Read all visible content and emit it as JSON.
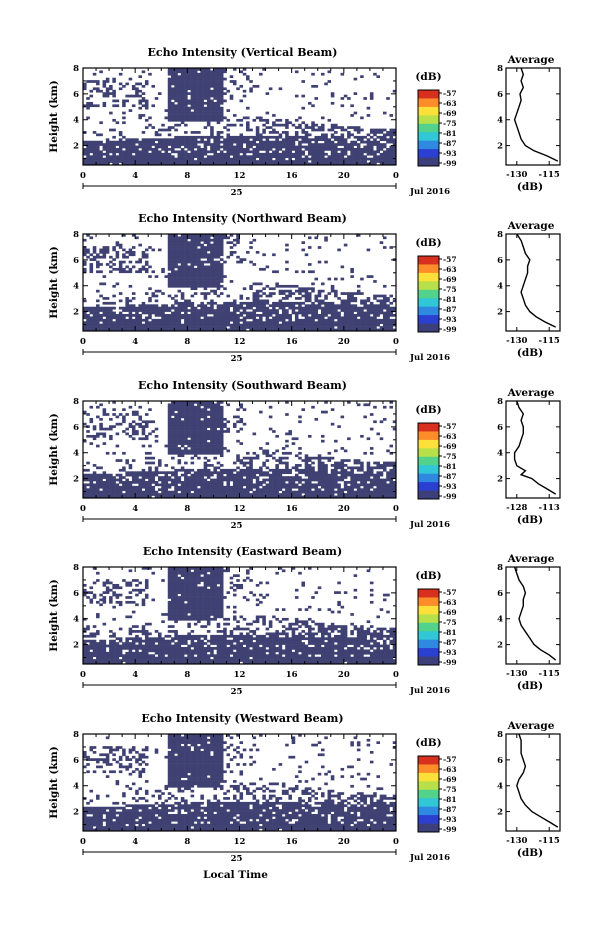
{
  "xlabel": "Local Time",
  "date_label": "Jul 2016",
  "day_label": "25",
  "colorbar_unit": "(dB)",
  "colorbar_ticks": [
    "-57",
    "-63",
    "-69",
    "-75",
    "-81",
    "-87",
    "-93",
    "-99"
  ],
  "colorbar_colors": [
    "#d7301f",
    "#fc8d2a",
    "#fee03a",
    "#b8e04a",
    "#52d28a",
    "#31c7d6",
    "#2f89e0",
    "#2b3fd0",
    "#3c3f7a"
  ],
  "fill_color": "#3f4173",
  "chart_data": [
    {
      "type": "heatmap",
      "title": "Echo Intensity (Vertical Beam)",
      "ylabel": "Height (km)",
      "xlim": [
        0,
        24
      ],
      "ylim": [
        0.5,
        8
      ],
      "xticks": [
        "0",
        "4",
        "8",
        "12",
        "16",
        "20",
        "0"
      ],
      "yticks": [
        "2",
        "4",
        "6",
        "8"
      ],
      "average": {
        "title": "Average",
        "xlabel": "(dB)",
        "xticks": [
          "-130",
          "-115"
        ],
        "xlim": [
          -135,
          -110
        ],
        "yticks": [
          "2",
          "4",
          "6",
          "8"
        ],
        "profile": [
          [
            0.8,
            -111
          ],
          [
            1.2,
            -116
          ],
          [
            1.6,
            -122
          ],
          [
            2.0,
            -126
          ],
          [
            2.5,
            -128
          ],
          [
            3.0,
            -129
          ],
          [
            3.5,
            -130
          ],
          [
            4.0,
            -131
          ],
          [
            4.5,
            -130
          ],
          [
            5.0,
            -129
          ],
          [
            5.5,
            -128
          ],
          [
            6.0,
            -128.5
          ],
          [
            6.5,
            -127
          ],
          [
            7.0,
            -128
          ],
          [
            7.5,
            -127
          ],
          [
            8.0,
            -128
          ]
        ]
      }
    },
    {
      "type": "heatmap",
      "title": "Echo Intensity (Northward Beam)",
      "ylabel": "Height (km)",
      "xlim": [
        0,
        24
      ],
      "ylim": [
        0.5,
        8
      ],
      "xticks": [
        "0",
        "4",
        "8",
        "12",
        "16",
        "20",
        "0"
      ],
      "yticks": [
        "2",
        "4",
        "6",
        "8"
      ],
      "average": {
        "title": "Average",
        "xlabel": "(dB)",
        "xticks": [
          "-130",
          "-115"
        ],
        "xlim": [
          -135,
          -110
        ],
        "yticks": [
          "2",
          "4",
          "6",
          "8"
        ],
        "profile": [
          [
            0.8,
            -112
          ],
          [
            1.2,
            -117
          ],
          [
            1.6,
            -121
          ],
          [
            2.0,
            -124
          ],
          [
            2.5,
            -126
          ],
          [
            3.0,
            -127
          ],
          [
            3.5,
            -128
          ],
          [
            4.0,
            -127
          ],
          [
            4.5,
            -126
          ],
          [
            5.0,
            -125
          ],
          [
            5.5,
            -125
          ],
          [
            6.0,
            -124
          ],
          [
            6.5,
            -126
          ],
          [
            7.0,
            -127
          ],
          [
            7.5,
            -128
          ],
          [
            8.0,
            -130
          ]
        ]
      }
    },
    {
      "type": "heatmap",
      "title": "Echo Intensity (Southward Beam)",
      "ylabel": "Height (km)",
      "xlim": [
        0,
        24
      ],
      "ylim": [
        0.5,
        8
      ],
      "xticks": [
        "0",
        "4",
        "8",
        "12",
        "16",
        "20",
        "0"
      ],
      "yticks": [
        "2",
        "4",
        "6",
        "8"
      ],
      "average": {
        "title": "Average",
        "xlabel": "(dB)",
        "xticks": [
          "-128",
          "-113"
        ],
        "xlim": [
          -133,
          -108
        ],
        "yticks": [
          "2",
          "4",
          "6",
          "8"
        ],
        "profile": [
          [
            0.8,
            -110
          ],
          [
            1.2,
            -114
          ],
          [
            1.6,
            -118
          ],
          [
            2.0,
            -121
          ],
          [
            2.3,
            -126
          ],
          [
            2.6,
            -124
          ],
          [
            3.0,
            -128
          ],
          [
            3.5,
            -129
          ],
          [
            4.0,
            -129
          ],
          [
            4.5,
            -127
          ],
          [
            5.0,
            -126
          ],
          [
            5.5,
            -125
          ],
          [
            6.0,
            -125
          ],
          [
            6.5,
            -126
          ],
          [
            7.0,
            -125
          ],
          [
            7.5,
            -127
          ],
          [
            8.0,
            -128
          ]
        ]
      }
    },
    {
      "type": "heatmap",
      "title": "Echo Intensity (Eastward Beam)",
      "ylabel": "Height (km)",
      "xlim": [
        0,
        24
      ],
      "ylim": [
        0.5,
        8
      ],
      "xticks": [
        "0",
        "4",
        "8",
        "12",
        "16",
        "20",
        "0"
      ],
      "yticks": [
        "2",
        "4",
        "6",
        "8"
      ],
      "average": {
        "title": "Average",
        "xlabel": "(dB)",
        "xticks": [
          "-130",
          "-115"
        ],
        "xlim": [
          -135,
          -110
        ],
        "yticks": [
          "2",
          "4",
          "6",
          "8"
        ],
        "profile": [
          [
            0.8,
            -112
          ],
          [
            1.2,
            -115
          ],
          [
            1.6,
            -119
          ],
          [
            2.0,
            -122
          ],
          [
            2.5,
            -124
          ],
          [
            3.0,
            -126
          ],
          [
            3.5,
            -128
          ],
          [
            4.0,
            -129
          ],
          [
            4.5,
            -128
          ],
          [
            5.0,
            -127
          ],
          [
            5.5,
            -127
          ],
          [
            6.0,
            -126
          ],
          [
            6.5,
            -127
          ],
          [
            7.0,
            -129
          ],
          [
            7.5,
            -130
          ],
          [
            8.0,
            -131
          ]
        ]
      }
    },
    {
      "type": "heatmap",
      "title": "Echo Intensity (Westward Beam)",
      "ylabel": "Height (km)",
      "xlim": [
        0,
        24
      ],
      "ylim": [
        0.5,
        8
      ],
      "xticks": [
        "0",
        "4",
        "8",
        "12",
        "16",
        "20",
        "0"
      ],
      "yticks": [
        "2",
        "4",
        "6",
        "8"
      ],
      "average": {
        "title": "Average",
        "xlabel": "(dB)",
        "xticks": [
          "-130",
          "-115"
        ],
        "xlim": [
          -135,
          -110
        ],
        "yticks": [
          "2",
          "4",
          "6",
          "8"
        ],
        "profile": [
          [
            0.8,
            -111
          ],
          [
            1.2,
            -115
          ],
          [
            1.6,
            -119
          ],
          [
            2.0,
            -123
          ],
          [
            2.5,
            -126
          ],
          [
            3.0,
            -128
          ],
          [
            3.5,
            -129
          ],
          [
            4.0,
            -130
          ],
          [
            4.5,
            -129
          ],
          [
            5.0,
            -127
          ],
          [
            5.5,
            -126
          ],
          [
            6.0,
            -127
          ],
          [
            6.5,
            -128
          ],
          [
            7.0,
            -128
          ],
          [
            7.5,
            -128
          ],
          [
            8.0,
            -129
          ]
        ]
      }
    }
  ]
}
